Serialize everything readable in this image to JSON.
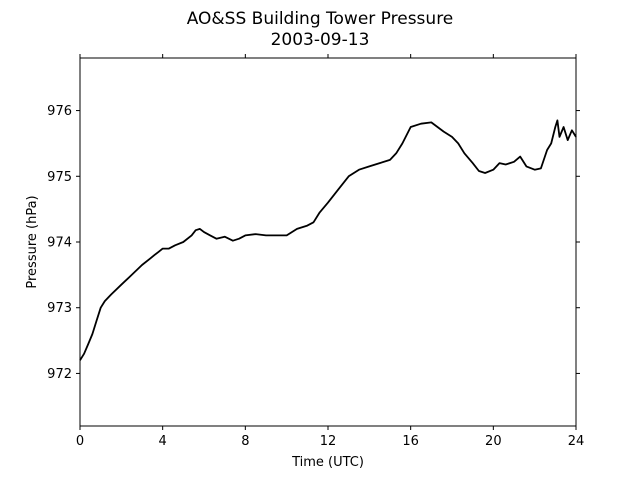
{
  "chart_data": {
    "type": "line",
    "title": "AO&SS Building Tower Pressure",
    "subtitle": "2003-09-13",
    "xlabel": "Time (UTC)",
    "ylabel": "Pressure (hPa)",
    "xlim": [
      0,
      24
    ],
    "ylim": [
      971.2,
      976.8
    ],
    "xticks": [
      0,
      4,
      8,
      12,
      16,
      20,
      24
    ],
    "yticks": [
      972,
      973,
      974,
      975,
      976
    ],
    "grid": false,
    "line_color": "#000000",
    "series": [
      {
        "x": [
          0.0,
          0.2,
          0.4,
          0.6,
          0.8,
          1.0,
          1.2,
          1.5,
          2.0,
          2.5,
          3.0,
          3.4,
          3.6,
          3.8,
          4.0,
          4.3,
          4.6,
          5.0,
          5.4,
          5.6,
          5.8,
          6.0,
          6.3,
          6.6,
          7.0,
          7.4,
          7.7,
          8.0,
          8.5,
          9.0,
          9.5,
          10.0,
          10.5,
          11.0,
          11.3,
          11.6,
          12.0,
          12.5,
          13.0,
          13.5,
          14.0,
          14.5,
          15.0,
          15.3,
          15.6,
          16.0,
          16.5,
          17.0,
          17.3,
          17.6,
          18.0,
          18.3,
          18.6,
          19.0,
          19.3,
          19.6,
          20.0,
          20.3,
          20.6,
          21.0,
          21.3,
          21.6,
          22.0,
          22.3,
          22.6,
          22.8,
          23.0,
          23.1,
          23.2,
          23.4,
          23.6,
          23.8,
          24.0
        ],
        "y": [
          972.2,
          972.3,
          972.45,
          972.6,
          972.8,
          973.0,
          973.1,
          973.2,
          973.35,
          973.5,
          973.65,
          973.75,
          973.8,
          973.85,
          973.9,
          973.9,
          973.95,
          974.0,
          974.1,
          974.18,
          974.2,
          974.15,
          974.1,
          974.05,
          974.08,
          974.02,
          974.05,
          974.1,
          974.12,
          974.1,
          974.1,
          974.1,
          974.2,
          974.25,
          974.3,
          974.45,
          974.6,
          974.8,
          975.0,
          975.1,
          975.15,
          975.2,
          975.25,
          975.35,
          975.5,
          975.75,
          975.8,
          975.82,
          975.75,
          975.68,
          975.6,
          975.5,
          975.35,
          975.2,
          975.08,
          975.05,
          975.1,
          975.2,
          975.18,
          975.22,
          975.3,
          975.15,
          975.1,
          975.12,
          975.4,
          975.5,
          975.75,
          975.85,
          975.6,
          975.75,
          975.55,
          975.7,
          975.6
        ]
      }
    ]
  }
}
